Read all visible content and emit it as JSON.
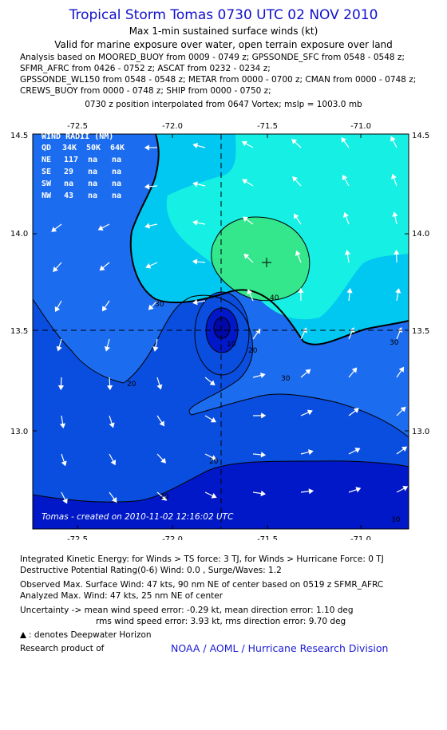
{
  "header": {
    "title": "Tropical Storm Tomas 0730 UTC 02 NOV 2010",
    "subtitle1": "Max 1-min sustained surface winds (kt)",
    "subtitle2": "Valid for marine exposure over water, open terrain exposure over land",
    "analysis_lines": [
      "Analysis based on MOORED_BUOY from 0009 - 0749 z; GPSSONDE_SFC from 0548 - 0548 z;",
      "SFMR_AFRC from 0426 - 0752 z; ASCAT from 0232 - 0234 z;",
      "GPSSONDE_WL150 from 0548 - 0548 z; METAR from 0000 - 0700 z; CMAN from 0000 - 0748 z;",
      "CREWS_BUOY from 0000 - 0748 z; SHIP from 0000 - 0750 z;"
    ],
    "position_line": "0730 z position interpolated from 0647 Vortex; mslp = 1003.0 mb"
  },
  "map": {
    "lon_ticks": [
      "-72.5",
      "-72.0",
      "-71.5",
      "-71.0"
    ],
    "lat_ticks": [
      "14.5",
      "14.0",
      "13.5",
      "13.0"
    ],
    "lon_range": [
      -72.75,
      -70.8
    ],
    "lat_range": [
      12.5,
      14.5
    ],
    "center_lon": -71.74,
    "center_lat": 13.51,
    "wind_radii": {
      "title": "WIND RADII (NM)",
      "header": [
        "QD",
        "34K",
        "50K",
        "64K"
      ],
      "rows": [
        [
          "NE",
          "117",
          "na",
          "na"
        ],
        [
          "SE",
          "29",
          "na",
          "na"
        ],
        [
          "SW",
          "na",
          "na",
          "na"
        ],
        [
          "NW",
          "43",
          "na",
          "na"
        ]
      ]
    },
    "contour_labels": [
      "30",
      "30",
      "40",
      "10",
      "20",
      "30",
      "20",
      "20",
      "30",
      "20"
    ],
    "credit": "Tomas - created on 2010-11-02 12:16:02 UTC",
    "colors": {
      "shade_10": "#0018c8",
      "shade_20": "#0a4ee0",
      "shade_30": "#1c6cf0",
      "shade_40": "#00c8f0",
      "shade_50": "#16f0e4",
      "shade_60": "#34e68c"
    }
  },
  "footer": {
    "ike": "Integrated Kinetic Energy:  for Winds > TS force: 3 TJ,  for Winds > Hurricane Force: 0 TJ",
    "dpr": "Destructive Potential Rating(0-6)   Wind: 0.0 , Surge/Waves: 1.2",
    "obs_max": "Observed Max. Surface Wind: 47 kts, 90 nm NE of center based on 0519 z SFMR_AFRC",
    "analyzed_max": "Analyzed Max. Wind: 47 kts, 25 nm NE of center",
    "uncertainty1": "Uncertainty -> mean wind speed error:  -0.29 kt,   mean direction error: 1.10 deg",
    "uncertainty2": "rms wind speed error: 3.93 kt,   rms direction error: 9.70 deg",
    "legend": ": denotes Deepwater Horizon",
    "research": "Research product of",
    "org": "NOAA / AOML / Hurricane Research Division"
  }
}
